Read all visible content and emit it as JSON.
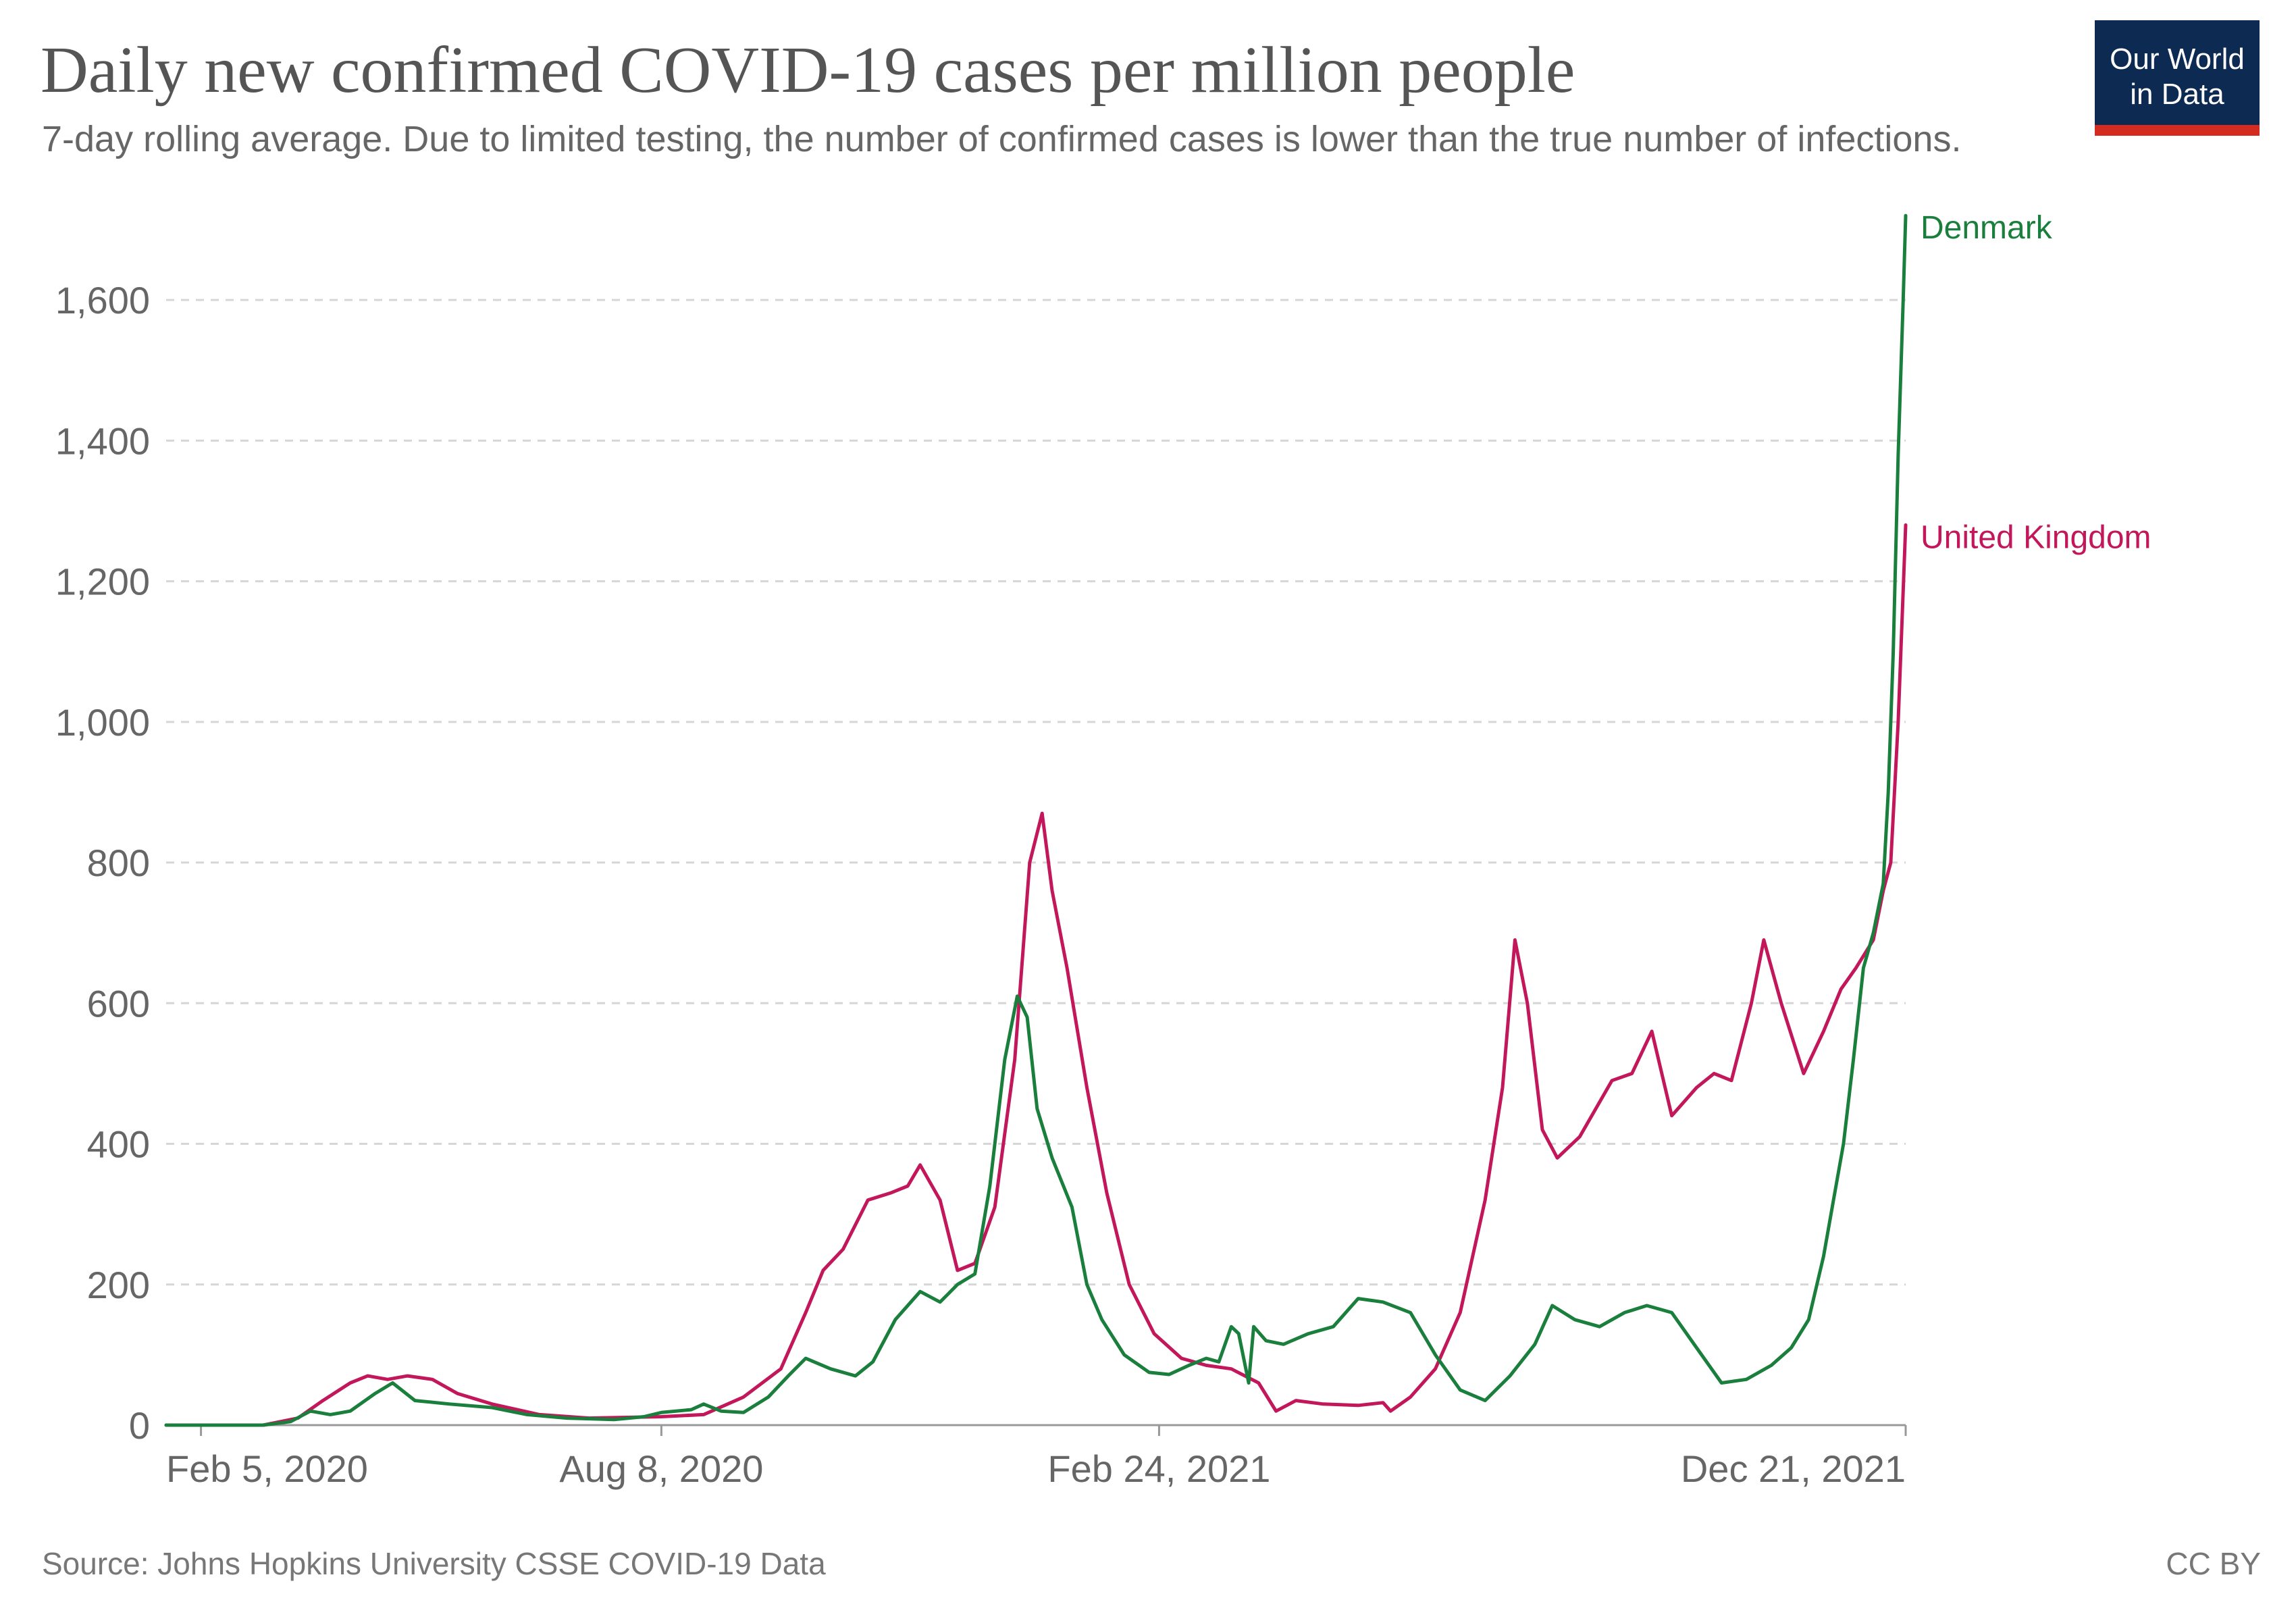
{
  "header": {
    "title": "Daily new confirmed COVID-19 cases per million people",
    "subtitle": "7-day rolling average. Due to limited testing, the number of confirmed cases is lower than the true number of infections."
  },
  "logo": {
    "line1": "Our World",
    "line2": "in Data"
  },
  "footer": {
    "source": "Source: Johns Hopkins University CSSE COVID-19 Data",
    "license": "CC BY"
  },
  "colors": {
    "denmark": "#1a7f3c",
    "united_kingdom": "#c2185b",
    "grid": "#d6d6d6",
    "axis": "#999999"
  },
  "chart_data": {
    "type": "line",
    "title": "Daily new confirmed COVID-19 cases per million people",
    "ylabel": "",
    "xlabel": "",
    "ylim": [
      0,
      1700
    ],
    "xlim": [
      "2020-01-22",
      "2021-12-21"
    ],
    "grid": true,
    "y_ticks": [
      0,
      200,
      400,
      600,
      800,
      1000,
      1200,
      1400,
      1600
    ],
    "y_tick_labels": [
      "0",
      "200",
      "400",
      "600",
      "800",
      "1,000",
      "1,200",
      "1,400",
      "1,600"
    ],
    "x_ticks": [
      {
        "date": "2020-02-05",
        "label": "Feb 5, 2020"
      },
      {
        "date": "2020-08-08",
        "label": "Aug 8, 2020"
      },
      {
        "date": "2021-02-24",
        "label": "Feb 24, 2021"
      },
      {
        "date": "2021-12-21",
        "label": "Dec 21, 2021"
      }
    ],
    "series": [
      {
        "name": "Denmark",
        "points": [
          [
            "2020-01-22",
            0
          ],
          [
            "2020-03-01",
            0
          ],
          [
            "2020-03-12",
            5
          ],
          [
            "2020-03-20",
            20
          ],
          [
            "2020-03-28",
            15
          ],
          [
            "2020-04-05",
            20
          ],
          [
            "2020-04-15",
            45
          ],
          [
            "2020-04-22",
            60
          ],
          [
            "2020-05-01",
            35
          ],
          [
            "2020-05-15",
            30
          ],
          [
            "2020-06-01",
            25
          ],
          [
            "2020-06-15",
            15
          ],
          [
            "2020-07-01",
            10
          ],
          [
            "2020-07-20",
            8
          ],
          [
            "2020-08-01",
            12
          ],
          [
            "2020-08-08",
            18
          ],
          [
            "2020-08-20",
            22
          ],
          [
            "2020-08-25",
            30
          ],
          [
            "2020-09-01",
            20
          ],
          [
            "2020-09-10",
            18
          ],
          [
            "2020-09-20",
            40
          ],
          [
            "2020-09-28",
            70
          ],
          [
            "2020-10-05",
            95
          ],
          [
            "2020-10-15",
            80
          ],
          [
            "2020-10-25",
            70
          ],
          [
            "2020-11-01",
            90
          ],
          [
            "2020-11-10",
            150
          ],
          [
            "2020-11-20",
            190
          ],
          [
            "2020-11-28",
            175
          ],
          [
            "2020-12-05",
            200
          ],
          [
            "2020-12-12",
            215
          ],
          [
            "2020-12-18",
            340
          ],
          [
            "2020-12-24",
            520
          ],
          [
            "2020-12-29",
            610
          ],
          [
            "2021-01-02",
            580
          ],
          [
            "2021-01-06",
            450
          ],
          [
            "2021-01-12",
            380
          ],
          [
            "2021-01-20",
            310
          ],
          [
            "2021-01-26",
            200
          ],
          [
            "2021-02-01",
            150
          ],
          [
            "2021-02-10",
            100
          ],
          [
            "2021-02-20",
            75
          ],
          [
            "2021-02-28",
            72
          ],
          [
            "2021-03-08",
            85
          ],
          [
            "2021-03-15",
            95
          ],
          [
            "2021-03-20",
            90
          ],
          [
            "2021-03-25",
            140
          ],
          [
            "2021-03-28",
            130
          ],
          [
            "2021-04-01",
            60
          ],
          [
            "2021-04-03",
            140
          ],
          [
            "2021-04-08",
            120
          ],
          [
            "2021-04-15",
            115
          ],
          [
            "2021-04-25",
            130
          ],
          [
            "2021-05-05",
            140
          ],
          [
            "2021-05-15",
            180
          ],
          [
            "2021-05-25",
            175
          ],
          [
            "2021-06-05",
            160
          ],
          [
            "2021-06-15",
            100
          ],
          [
            "2021-06-25",
            50
          ],
          [
            "2021-07-05",
            35
          ],
          [
            "2021-07-15",
            70
          ],
          [
            "2021-07-25",
            115
          ],
          [
            "2021-08-01",
            170
          ],
          [
            "2021-08-10",
            150
          ],
          [
            "2021-08-20",
            140
          ],
          [
            "2021-08-30",
            160
          ],
          [
            "2021-09-08",
            170
          ],
          [
            "2021-09-18",
            160
          ],
          [
            "2021-09-28",
            110
          ],
          [
            "2021-10-08",
            60
          ],
          [
            "2021-10-18",
            65
          ],
          [
            "2021-10-28",
            85
          ],
          [
            "2021-11-05",
            110
          ],
          [
            "2021-11-12",
            150
          ],
          [
            "2021-11-18",
            240
          ],
          [
            "2021-11-22",
            320
          ],
          [
            "2021-11-26",
            400
          ],
          [
            "2021-11-30",
            520
          ],
          [
            "2021-12-04",
            650
          ],
          [
            "2021-12-08",
            700
          ],
          [
            "2021-12-12",
            770
          ],
          [
            "2021-12-14",
            900
          ],
          [
            "2021-12-16",
            1100
          ],
          [
            "2021-12-18",
            1380
          ],
          [
            "2021-12-20",
            1600
          ],
          [
            "2021-12-21",
            1720
          ]
        ]
      },
      {
        "name": "United Kingdom",
        "points": [
          [
            "2020-01-22",
            0
          ],
          [
            "2020-03-01",
            0
          ],
          [
            "2020-03-15",
            10
          ],
          [
            "2020-03-25",
            35
          ],
          [
            "2020-04-05",
            60
          ],
          [
            "2020-04-12",
            70
          ],
          [
            "2020-04-20",
            65
          ],
          [
            "2020-04-28",
            70
          ],
          [
            "2020-05-08",
            65
          ],
          [
            "2020-05-18",
            45
          ],
          [
            "2020-06-01",
            30
          ],
          [
            "2020-06-20",
            15
          ],
          [
            "2020-07-10",
            10
          ],
          [
            "2020-08-08",
            12
          ],
          [
            "2020-08-25",
            15
          ],
          [
            "2020-09-10",
            40
          ],
          [
            "2020-09-25",
            80
          ],
          [
            "2020-10-05",
            160
          ],
          [
            "2020-10-12",
            220
          ],
          [
            "2020-10-20",
            250
          ],
          [
            "2020-10-30",
            320
          ],
          [
            "2020-11-08",
            330
          ],
          [
            "2020-11-15",
            340
          ],
          [
            "2020-11-20",
            370
          ],
          [
            "2020-11-28",
            320
          ],
          [
            "2020-12-05",
            220
          ],
          [
            "2020-12-12",
            230
          ],
          [
            "2020-12-20",
            310
          ],
          [
            "2020-12-28",
            520
          ],
          [
            "2021-01-03",
            800
          ],
          [
            "2021-01-08",
            870
          ],
          [
            "2021-01-12",
            760
          ],
          [
            "2021-01-18",
            650
          ],
          [
            "2021-01-26",
            480
          ],
          [
            "2021-02-03",
            330
          ],
          [
            "2021-02-12",
            200
          ],
          [
            "2021-02-22",
            130
          ],
          [
            "2021-03-05",
            95
          ],
          [
            "2021-03-15",
            85
          ],
          [
            "2021-03-25",
            80
          ],
          [
            "2021-04-05",
            60
          ],
          [
            "2021-04-12",
            20
          ],
          [
            "2021-04-20",
            35
          ],
          [
            "2021-05-01",
            30
          ],
          [
            "2021-05-15",
            28
          ],
          [
            "2021-05-25",
            32
          ],
          [
            "2021-05-28",
            20
          ],
          [
            "2021-06-05",
            40
          ],
          [
            "2021-06-15",
            80
          ],
          [
            "2021-06-25",
            160
          ],
          [
            "2021-07-05",
            320
          ],
          [
            "2021-07-12",
            480
          ],
          [
            "2021-07-17",
            690
          ],
          [
            "2021-07-22",
            600
          ],
          [
            "2021-07-28",
            420
          ],
          [
            "2021-08-03",
            380
          ],
          [
            "2021-08-12",
            410
          ],
          [
            "2021-08-25",
            490
          ],
          [
            "2021-09-02",
            500
          ],
          [
            "2021-09-10",
            560
          ],
          [
            "2021-09-18",
            440
          ],
          [
            "2021-09-28",
            480
          ],
          [
            "2021-10-05",
            500
          ],
          [
            "2021-10-12",
            490
          ],
          [
            "2021-10-20",
            600
          ],
          [
            "2021-10-25",
            690
          ],
          [
            "2021-11-01",
            600
          ],
          [
            "2021-11-10",
            500
          ],
          [
            "2021-11-18",
            560
          ],
          [
            "2021-11-25",
            620
          ],
          [
            "2021-12-01",
            650
          ],
          [
            "2021-12-08",
            690
          ],
          [
            "2021-12-12",
            760
          ],
          [
            "2021-12-15",
            800
          ],
          [
            "2021-12-18",
            1000
          ],
          [
            "2021-12-21",
            1280
          ]
        ]
      }
    ]
  }
}
